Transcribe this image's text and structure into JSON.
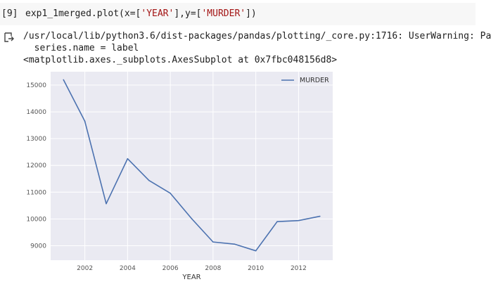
{
  "cell": {
    "exec_count": "[9]",
    "code_prefix": "exp1_1merged.plot(x=[",
    "code_str1": "'YEAR'",
    "code_mid": "],y=[",
    "code_str2": "'MURDER'",
    "code_suffix": "])"
  },
  "output": {
    "icon": "output-arrow-icon",
    "warning_line": "/usr/local/lib/python3.6/dist-packages/pandas/plotting/_core.py:1716: UserWarning: Pa",
    "warning_line2": "  series.name = label",
    "repr_line": "<matplotlib.axes._subplots.AxesSubplot at 0x7fbc048156d8>"
  },
  "chart_data": {
    "type": "line",
    "xlabel": "YEAR",
    "ylabel": "",
    "x": [
      2001,
      2002,
      2003,
      2004,
      2005,
      2006,
      2007,
      2008,
      2009,
      2010,
      2011,
      2012,
      2013
    ],
    "series": [
      {
        "name": "MURDER",
        "color": "#4c72b0",
        "values": [
          15200,
          13650,
          10570,
          12250,
          11440,
          10960,
          10010,
          9140,
          9060,
          8810,
          9900,
          9940,
          10100
        ]
      }
    ],
    "xticks": [
      "2002",
      "2004",
      "2006",
      "2008",
      "2010",
      "2012"
    ],
    "yticks": [
      "9000",
      "10000",
      "11000",
      "12000",
      "13000",
      "14000",
      "15000"
    ],
    "xlim": [
      2000.4,
      2013.6
    ],
    "ylim": [
      8460,
      15500
    ],
    "grid": true,
    "legend_position": "top-right",
    "background": "#eaeaf2"
  }
}
